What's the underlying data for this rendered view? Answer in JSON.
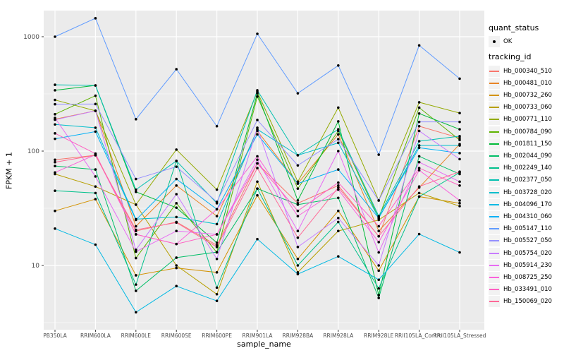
{
  "figure": {
    "background": "#FFFFFF",
    "panel_background": "#EBEBEB",
    "grid_color": "#FFFFFF",
    "axis_text_color": "#4D4D4D",
    "point_color": "#000000"
  },
  "legend": {
    "quant_status_title": "quant_status",
    "quant_status_items": [
      {
        "label": "OK",
        "marker": "point-icon"
      }
    ],
    "tracking_id_title": "tracking_id"
  },
  "chart_data": {
    "type": "line",
    "title": "",
    "xlabel": "sample_name",
    "ylabel": "FPKM + 1",
    "y_scale": "log10",
    "ylim": [
      3,
      1600
    ],
    "y_major_ticks": [
      1000,
      100,
      10
    ],
    "y_major_tick_labels": [
      "1000",
      "100",
      "10"
    ],
    "y_minor_gridlines": [
      316.2,
      31.62,
      3.162
    ],
    "grid": true,
    "legend_position": "right",
    "marker": "black point on every vertex",
    "categories": [
      "PB350LA",
      "RRIM600LA",
      "RRIM600LE",
      "RRIM600SE",
      "RRIM600PE",
      "RRIM901LA",
      "RRIM928BA",
      "RRIM928LA",
      "RRIM928LE",
      "RRII105LA_Control",
      "RRII105LA_Stressed"
    ],
    "series": [
      {
        "name": "Hb_000340_510",
        "color": "#F8766D",
        "values": [
          84,
          92,
          20,
          24,
          15,
          78,
          35,
          50,
          18,
          165,
          130
        ]
      },
      {
        "name": "Hb_000481_010",
        "color": "#E88526",
        "values": [
          190,
          225,
          22,
          50,
          27,
          150,
          52,
          140,
          20,
          48,
          115
        ]
      },
      {
        "name": "Hb_000732_260",
        "color": "#D39200",
        "values": [
          30,
          38,
          8.2,
          9.5,
          8.7,
          41,
          11.4,
          30,
          9,
          40,
          35
        ]
      },
      {
        "name": "Hb_000733_060",
        "color": "#B79F00",
        "values": [
          63,
          49,
          34,
          10,
          5.6,
          54,
          8.7,
          20,
          25,
          43,
          33
        ]
      },
      {
        "name": "Hb_000771_110",
        "color": "#93AA00",
        "values": [
          280,
          225,
          34,
          103,
          46,
          330,
          54,
          240,
          37,
          267,
          215
        ]
      },
      {
        "name": "Hb_000784_090",
        "color": "#5EB300",
        "values": [
          210,
          305,
          11.6,
          35,
          13,
          300,
          47,
          150,
          26,
          240,
          125
        ]
      },
      {
        "name": "Hb_001811_150",
        "color": "#00BA38",
        "values": [
          340,
          375,
          44,
          32,
          15.8,
          320,
          37,
          182,
          5.5,
          213,
          155
        ]
      },
      {
        "name": "Hb_002044_090",
        "color": "#00BE67",
        "values": [
          74,
          69,
          6,
          11.7,
          13.1,
          47,
          34,
          39,
          5.2,
          90,
          63
        ]
      },
      {
        "name": "Hb_002249_140",
        "color": "#00C08B",
        "values": [
          45,
          43,
          6.8,
          82,
          6.4,
          47,
          10,
          24,
          6.3,
          40,
          65
        ]
      },
      {
        "name": "Hb_002377_050",
        "color": "#00C0AF",
        "values": [
          380,
          375,
          46,
          82,
          35,
          340,
          92,
          155,
          27,
          122,
          135
        ]
      },
      {
        "name": "Hb_003728_020",
        "color": "#00BECC",
        "values": [
          171,
          160,
          25.4,
          26.5,
          23,
          155,
          92,
          118,
          26,
          112,
          112
        ]
      },
      {
        "name": "Hb_004096_170",
        "color": "#00B9E3",
        "values": [
          21,
          15.2,
          3.9,
          6.6,
          4.9,
          17,
          8.4,
          12,
          7.5,
          18.8,
          13
        ]
      },
      {
        "name": "Hb_004310_060",
        "color": "#00B0F6",
        "values": [
          128,
          148,
          25,
          57,
          31,
          140,
          52,
          69,
          26,
          107,
          96
        ]
      },
      {
        "name": "Hb_005147_110",
        "color": "#619CFF",
        "values": [
          1000,
          1450,
          190,
          520,
          165,
          1060,
          320,
          560,
          93,
          840,
          430
        ]
      },
      {
        "name": "Hb_005527_050",
        "color": "#9590FF",
        "values": [
          257,
          258,
          57,
          73,
          36,
          187,
          75,
          127,
          37,
          180,
          180
        ]
      },
      {
        "name": "Hb_005754_020",
        "color": "#C77CFF",
        "values": [
          188,
          225,
          13.7,
          42,
          11.4,
          160,
          14.5,
          26,
          10,
          150,
          85
        ]
      },
      {
        "name": "Hb_005914_230",
        "color": "#E76BF3",
        "values": [
          195,
          60,
          13.2,
          20,
          18.7,
          84,
          20,
          100,
          13,
          80,
          54
        ]
      },
      {
        "name": "Hb_008725_250",
        "color": "#FA62DB",
        "values": [
          65,
          93,
          18.7,
          15.4,
          31,
          90,
          27,
          46,
          16,
          68,
          37
        ]
      },
      {
        "name": "Hb_033491_010",
        "color": "#FF61C3",
        "values": [
          143,
          95,
          18.7,
          15.4,
          18.7,
          78,
          30,
          53,
          22,
          71,
          50
        ]
      },
      {
        "name": "Hb_150069_020",
        "color": "#FF6A98",
        "values": [
          80,
          92,
          20.5,
          23.7,
          14.5,
          71,
          17.5,
          48,
          18,
          49,
          66
        ]
      }
    ]
  }
}
